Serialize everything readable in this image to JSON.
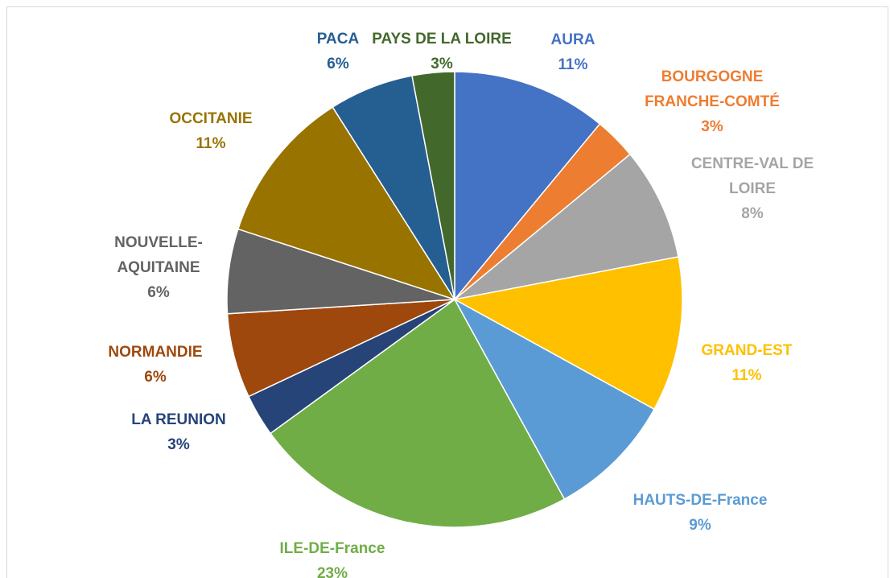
{
  "chart_data": {
    "type": "pie",
    "categories": [
      "AURA",
      "BOURGOGNE FRANCHE-COMTÉ",
      "CENTRE-VAL DE LOIRE",
      "GRAND-EST",
      "HAUTS-DE-France",
      "ILE-DE-France",
      "LA REUNION",
      "NORMANDIE",
      "NOUVELLE-AQUITAINE",
      "OCCITANIE",
      "PACA",
      "PAYS DE LA LOIRE"
    ],
    "values": [
      11,
      3,
      8,
      11,
      9,
      23,
      3,
      6,
      6,
      11,
      6,
      3
    ],
    "value_labels": [
      "11%",
      "3%",
      "8%",
      "11%",
      "9%",
      "23%",
      "3%",
      "6%",
      "6%",
      "11%",
      "6%",
      "3%"
    ],
    "colors": [
      "#4472c4",
      "#ed7d31",
      "#a5a5a5",
      "#ffc000",
      "#5b9bd5",
      "#70ad47",
      "#264478",
      "#9e480e",
      "#636363",
      "#997300",
      "#255e91",
      "#43682b"
    ]
  }
}
